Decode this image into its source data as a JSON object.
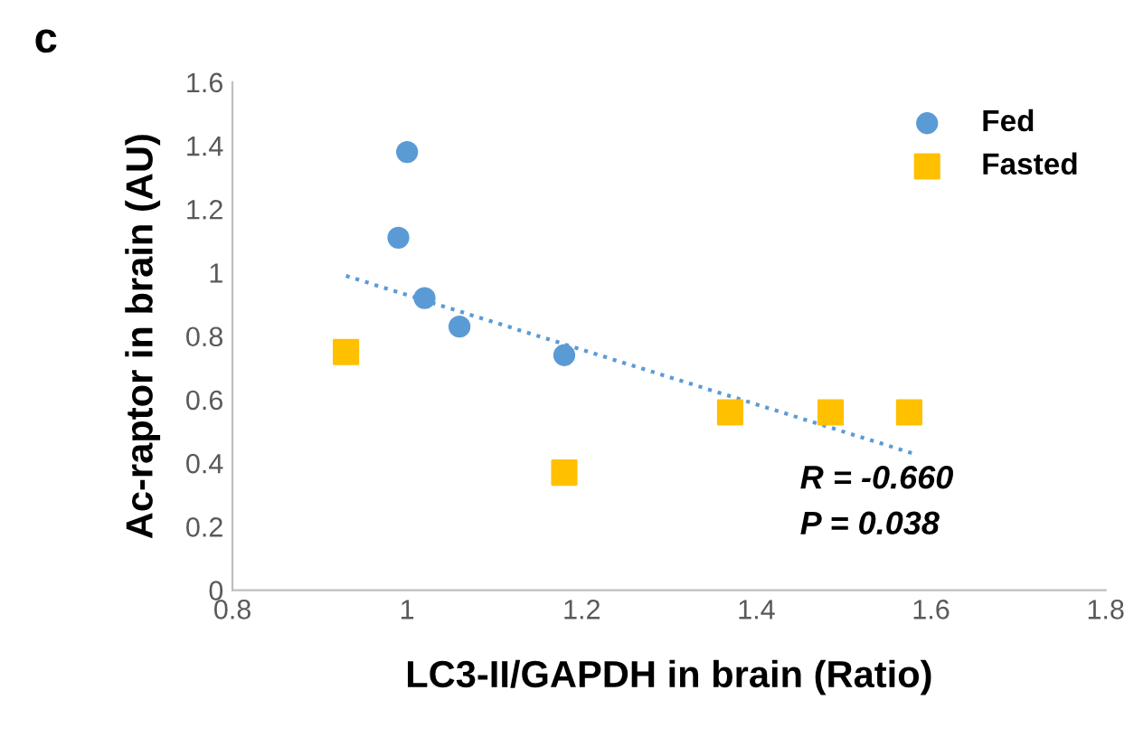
{
  "chart_data": {
    "type": "scatter",
    "title": "c",
    "xlabel": "LC3-II/GAPDH in brain (Ratio)",
    "ylabel": "Ac-raptor in brain (AU)",
    "xlim": [
      0.8,
      1.8
    ],
    "xticks": [
      {
        "value": 0.8,
        "label": "0.8"
      },
      {
        "value": 1.0,
        "label": "1"
      },
      {
        "value": 1.2,
        "label": "1.2"
      },
      {
        "value": 1.4,
        "label": "1.4"
      },
      {
        "value": 1.6,
        "label": "1.6"
      },
      {
        "value": 1.8,
        "label": "1.8"
      }
    ],
    "ylim": [
      0,
      1.6
    ],
    "yticks": [
      0,
      {
        "value": 0.2,
        "label": "0.2"
      },
      {
        "value": 0.4,
        "label": "0.4"
      },
      {
        "value": 0.6,
        "label": "0.6"
      },
      {
        "value": 0.8,
        "label": "0.8"
      },
      1,
      {
        "value": 1.2,
        "label": "1.2"
      },
      {
        "value": 1.4,
        "label": "1.4"
      },
      {
        "value": 1.6,
        "label": "1.6"
      }
    ],
    "grid": false,
    "legend": "top right",
    "series": [
      {
        "name": "Fed",
        "color": "#5b9bd5",
        "marker": "circle",
        "x": [
          1.0,
          0.99,
          1.02,
          1.06,
          1.18
        ],
        "values": [
          1.38,
          1.11,
          0.92,
          0.83,
          0.74
        ]
      },
      {
        "name": "Fasted",
        "color": "#ffc000",
        "marker": "square",
        "x": [
          0.93,
          1.18,
          1.37,
          1.485,
          1.575
        ],
        "values": [
          0.75,
          0.37,
          0.56,
          0.56,
          0.56
        ]
      },
      {
        "type": "line",
        "color": "#5b9bd5",
        "line_style": "dotted",
        "marker": "none",
        "x": [
          0.93,
          1.58
        ],
        "values": [
          0.99,
          0.43
        ]
      }
    ],
    "annotations": [
      "R = -0.660",
      "P = 0.038"
    ]
  }
}
